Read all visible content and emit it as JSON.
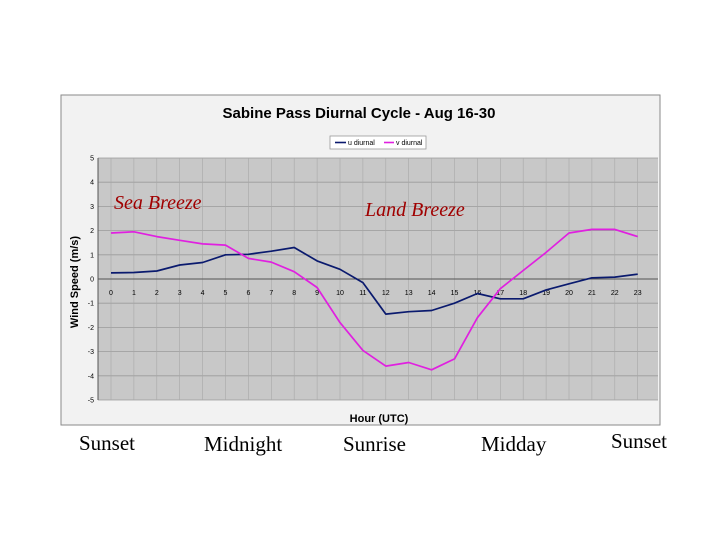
{
  "chart_data": {
    "type": "line",
    "title": "Sabine Pass Diurnal Cycle - Aug 16-30",
    "xlabel": "Hour (UTC)",
    "ylabel": "Wind Speed (m/s)",
    "ylim": [
      -5,
      5
    ],
    "yticks": [
      "5",
      "4",
      "3",
      "2",
      "1",
      "0",
      "-1",
      "-2",
      "-3",
      "-4",
      "-5"
    ],
    "categories": [
      "0",
      "1",
      "2",
      "3",
      "4",
      "5",
      "6",
      "7",
      "8",
      "9",
      "10",
      "11",
      "12",
      "13",
      "14",
      "15",
      "16",
      "17",
      "18",
      "19",
      "20",
      "21",
      "22",
      "23"
    ],
    "grid": true,
    "legend_position": "top-center",
    "series": [
      {
        "name": "u diurnal",
        "color": "#0a1a6e",
        "values": [
          0.25,
          0.27,
          0.33,
          0.58,
          0.68,
          1.0,
          1.02,
          1.15,
          1.3,
          0.75,
          0.4,
          -0.15,
          -1.45,
          -1.35,
          -1.3,
          -1.0,
          -0.6,
          -0.82,
          -0.82,
          -0.45,
          -0.2,
          0.05,
          0.08,
          0.2
        ]
      },
      {
        "name": "v diurnal",
        "color": "#e020e0",
        "values": [
          1.9,
          1.95,
          1.75,
          1.6,
          1.45,
          1.4,
          0.85,
          0.7,
          0.3,
          -0.35,
          -1.8,
          -2.95,
          -3.6,
          -3.45,
          -3.75,
          -3.3,
          -1.6,
          -0.4,
          0.35,
          1.1,
          1.9,
          2.05,
          2.05,
          1.75
        ]
      }
    ],
    "annotations": [
      "Sea Breeze",
      "Land Breeze"
    ]
  },
  "captions": [
    "Sunset",
    "Midnight",
    "Sunrise",
    "Midday",
    "Sunset"
  ]
}
